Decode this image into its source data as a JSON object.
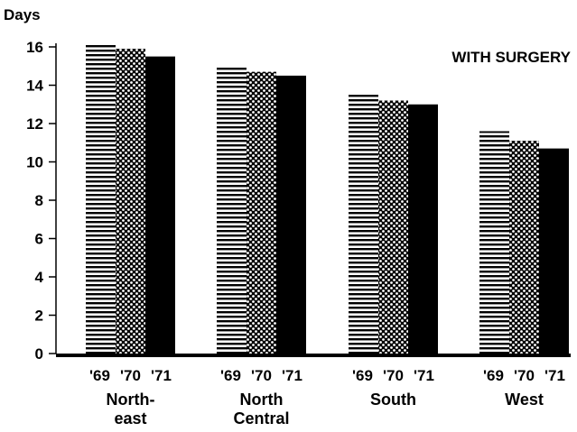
{
  "chart_data": {
    "type": "bar",
    "ylabel": "Days",
    "annotation": "WITH SURGERY",
    "ylim": [
      0,
      16
    ],
    "yticks": [
      "0",
      "2",
      "4",
      "6",
      "8",
      "10",
      "12",
      "14",
      "16"
    ],
    "grid": false,
    "legend": "none",
    "categories": [
      {
        "lines": [
          "North-",
          "east"
        ],
        "years": [
          "'69",
          "'70",
          "'71"
        ]
      },
      {
        "lines": [
          "North",
          "Central"
        ],
        "years": [
          "'69",
          "'70",
          "'71"
        ]
      },
      {
        "lines": [
          "South"
        ],
        "years": [
          "'69",
          "'70",
          "'71"
        ]
      },
      {
        "lines": [
          "West"
        ],
        "years": [
          "'69",
          "'70",
          "'71"
        ]
      }
    ],
    "series": [
      {
        "values": [
          16.2,
          15.0,
          13.5,
          11.6
        ],
        "pattern": "horizontal-lines"
      },
      {
        "values": [
          15.9,
          14.7,
          13.2,
          11.1
        ],
        "pattern": "dots"
      },
      {
        "values": [
          15.5,
          14.5,
          13.0,
          10.7
        ],
        "pattern": "solid"
      }
    ],
    "colors": {
      "ink": "#000000",
      "background": "#ffffff"
    }
  }
}
